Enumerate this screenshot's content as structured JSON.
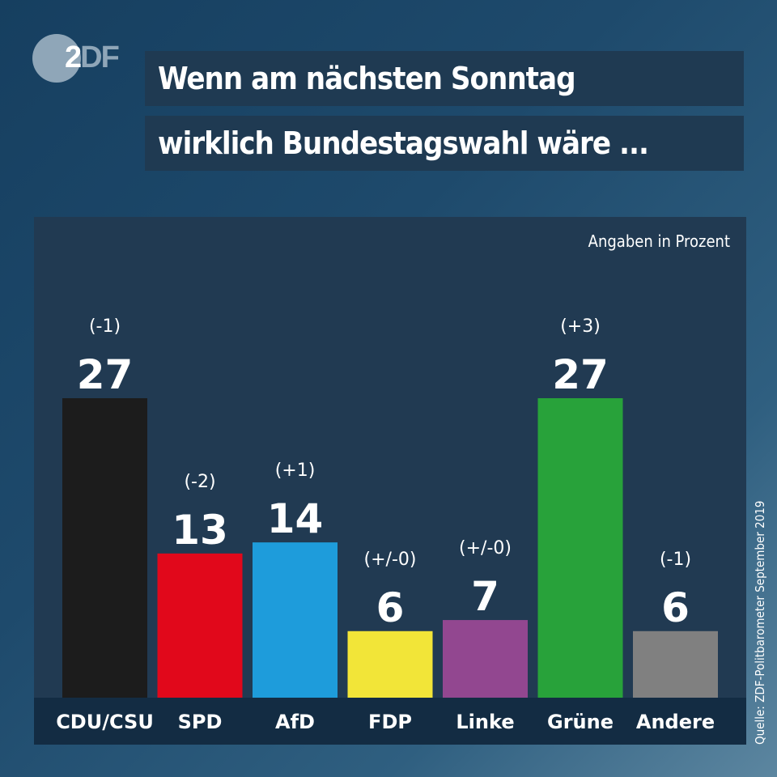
{
  "logo": {
    "text_bold": "2",
    "text_light": "DF",
    "icon": "zdf-logo"
  },
  "header": {
    "line1": "Wenn am nächsten Sonntag",
    "line2": "wirklich Bundestagswahl wäre ..."
  },
  "unit_note": "Angaben in Prozent",
  "source": "Quelle: ZDF-Politbarometer September 2019",
  "chart_data": {
    "type": "bar",
    "title": "Wenn am nächsten Sonntag wirklich Bundestagswahl wäre ...",
    "subtitle": "Angaben in Prozent",
    "xlabel": "",
    "ylabel": "",
    "ylim": [
      0,
      27
    ],
    "grid": false,
    "categories": [
      "CDU/CSU",
      "SPD",
      "AfD",
      "FDP",
      "Linke",
      "Grüne",
      "Andere"
    ],
    "values": [
      27,
      13,
      14,
      6,
      7,
      27,
      6
    ],
    "changes": [
      "(-1)",
      "(-2)",
      "(+1)",
      "(+/-0)",
      "(+/-0)",
      "(+3)",
      "(-1)"
    ],
    "colors": [
      "#1c1c1c",
      "#e1081b",
      "#1e9cdb",
      "#f2e538",
      "#924790",
      "#28a23a",
      "#808080"
    ],
    "source": "Quelle: ZDF-Politbarometer September 2019"
  }
}
